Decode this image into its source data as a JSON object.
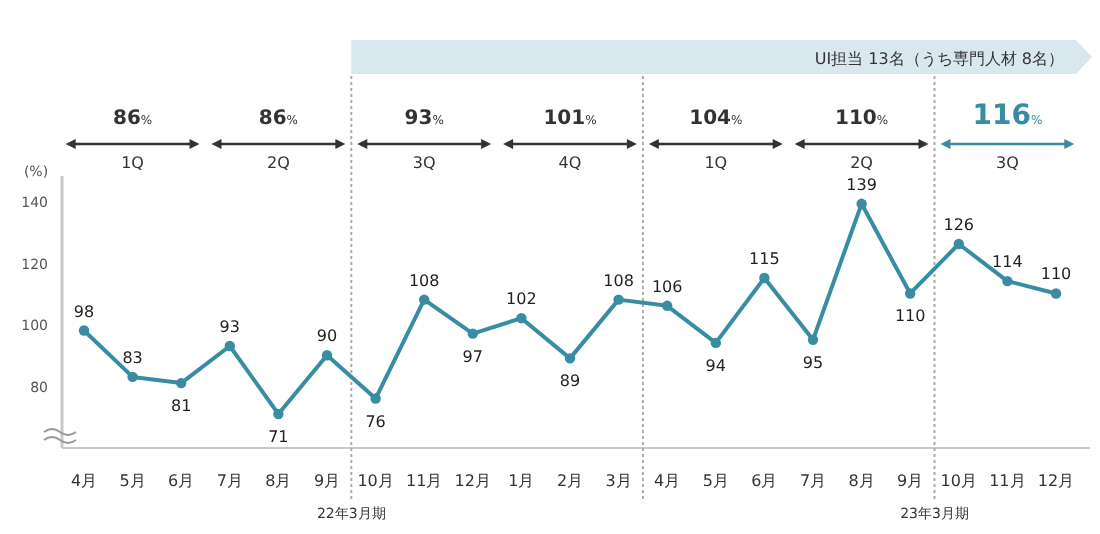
{
  "chart_data": {
    "type": "line",
    "categories": [
      "4月",
      "5月",
      "6月",
      "7月",
      "8月",
      "9月",
      "10月",
      "11月",
      "12月",
      "1月",
      "2月",
      "3月",
      "4月",
      "5月",
      "6月",
      "7月",
      "8月",
      "9月",
      "10月",
      "11月",
      "12月"
    ],
    "series": [
      {
        "color": "#3a8ca3",
        "values": [
          98,
          83,
          81,
          93,
          71,
          90,
          76,
          108,
          97,
          102,
          89,
          108,
          106,
          94,
          115,
          95,
          139,
          110,
          126,
          114,
          110
        ]
      }
    ],
    "ylabel": "(%)",
    "ylim": [
      60,
      148
    ],
    "yticks": [
      80,
      100,
      120,
      140
    ],
    "marker": "circle",
    "data_labels": true,
    "grid": false,
    "annotations": [
      "UI担当 13名（うち専門人材 8名）",
      "86%",
      "1Q",
      "86%",
      "2Q",
      "93%",
      "3Q",
      "101%",
      "4Q",
      "104%",
      "1Q",
      "110%",
      "2Q",
      "116%",
      "3Q",
      "22年3月期",
      "23年3月期"
    ]
  }
}
